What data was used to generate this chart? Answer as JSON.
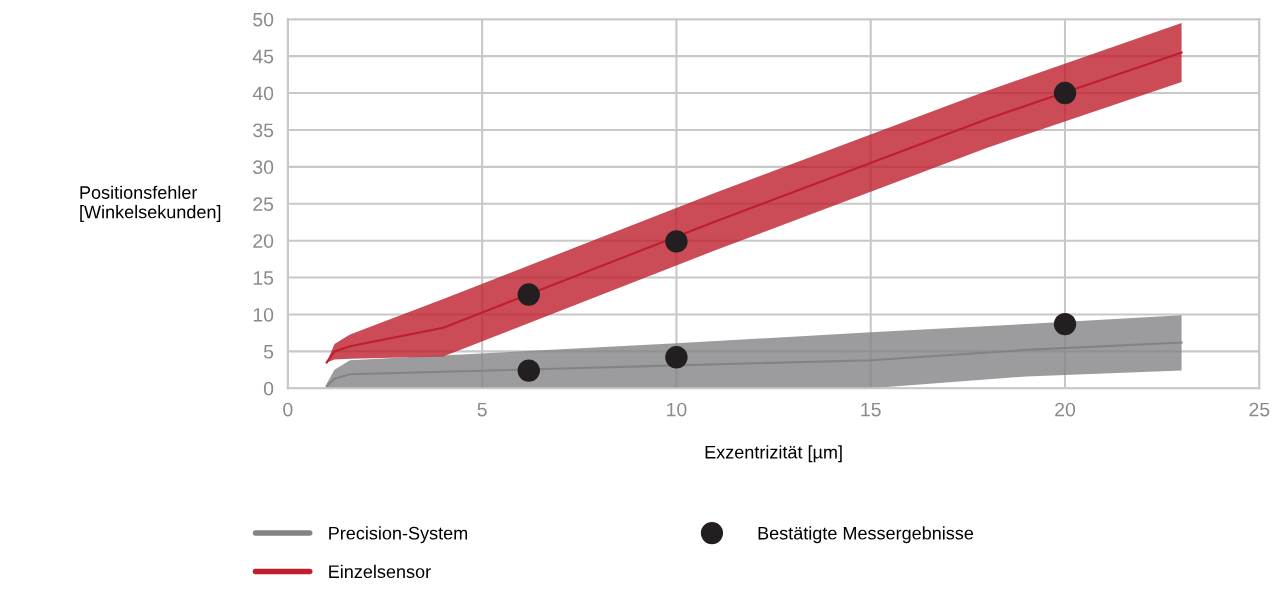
{
  "chart_data": {
    "type": "line",
    "xlabel": "Exzentrizität [µm]",
    "ylabel": "Positionsfehler\n[Winkelsekunden]",
    "xlim": [
      0,
      25
    ],
    "xticks": [
      0,
      5,
      10,
      15,
      20,
      25
    ],
    "ylim": [
      0,
      50
    ],
    "yticks": [
      0,
      5,
      10,
      15,
      20,
      25,
      30,
      35,
      40,
      45,
      50
    ],
    "grid": true,
    "legend": "bottom",
    "series": [
      {
        "name": "Precision-System",
        "color": "#838386",
        "x": [
          1,
          1.2,
          1.6,
          10,
          15,
          19,
          23
        ],
        "values": [
          0.3,
          1.3,
          1.9,
          3.1,
          3.8,
          5.2,
          6.2
        ],
        "lower": [
          0,
          0,
          0,
          0,
          0,
          1.6,
          2.4
        ],
        "upper": [
          0.6,
          2.5,
          3.8,
          6.1,
          7.6,
          8.7,
          9.9
        ]
      },
      {
        "name": "Einzelsensor",
        "color": "#be1e2d",
        "x": [
          1,
          1.2,
          1.6,
          4,
          11,
          18,
          23
        ],
        "values": [
          3.5,
          5,
          5.7,
          8.2,
          22.6,
          36.5,
          45.5
        ],
        "lower": [
          3.5,
          3.9,
          4,
          4.3,
          18.7,
          32.6,
          41.5
        ],
        "upper": [
          3.5,
          6,
          7.3,
          12.1,
          26.5,
          40.3,
          49.5
        ]
      },
      {
        "name": "Bestätigte Messergebnisse",
        "type": "scatter",
        "color": "#231f20",
        "marker": "circle",
        "x": [
          6.2,
          10,
          20,
          6.2,
          10,
          20
        ],
        "values": [
          12.7,
          19.9,
          40,
          2.4,
          4.2,
          8.7
        ]
      }
    ]
  }
}
